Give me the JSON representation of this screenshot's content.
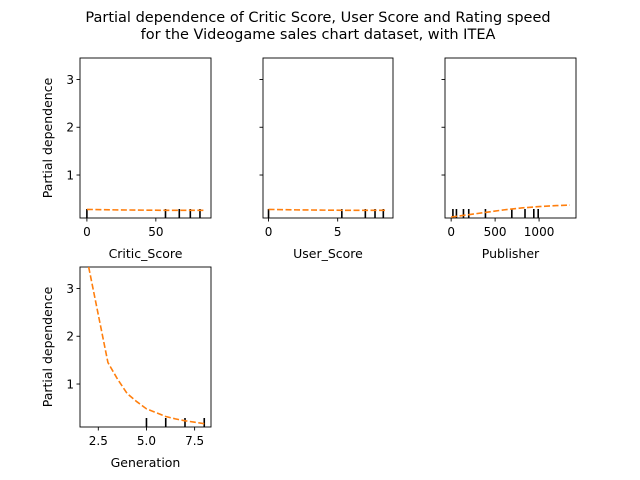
{
  "figure": {
    "title_lines": [
      "Partial dependence of Critic Score, User Score and Rating speed",
      "for the Videogame sales chart dataset, with ITEA"
    ]
  },
  "chart_data": [
    {
      "type": "line",
      "xlabel": "Critic_Score",
      "ylabel": "Partial dependence",
      "xlim": [
        -5,
        90
      ],
      "ylim": [
        0.1,
        3.45
      ],
      "xticks": [
        0,
        50
      ],
      "xtick_labels": [
        "0",
        "50"
      ],
      "yticks": [
        1,
        2,
        3
      ],
      "ytick_labels": [
        "1",
        "2",
        "3"
      ],
      "show_ytick_labels": true,
      "x": [
        0,
        20,
        40,
        60,
        85
      ],
      "y": [
        0.28,
        0.27,
        0.265,
        0.26,
        0.26
      ],
      "rug": [
        0,
        57,
        67,
        75,
        82
      ],
      "line_color": "#ff7f0e"
    },
    {
      "type": "line",
      "xlabel": "User_Score",
      "ylabel": "",
      "xlim": [
        -0.4,
        9.0
      ],
      "ylim": [
        0.1,
        3.45
      ],
      "xticks": [
        0,
        5
      ],
      "xtick_labels": [
        "0",
        "5"
      ],
      "yticks": [
        1,
        2,
        3
      ],
      "ytick_labels": [
        "",
        "",
        ""
      ],
      "show_ytick_labels": false,
      "x": [
        0,
        2,
        4,
        6,
        8.5
      ],
      "y": [
        0.28,
        0.27,
        0.265,
        0.26,
        0.26
      ],
      "rug": [
        0,
        5.3,
        7.0,
        7.7,
        8.3
      ],
      "line_color": "#ff7f0e"
    },
    {
      "type": "line",
      "xlabel": "Publisher",
      "ylabel": "",
      "xlim": [
        -70,
        1420
      ],
      "ylim": [
        0.1,
        3.45
      ],
      "xticks": [
        0,
        500,
        1000
      ],
      "xtick_labels": [
        "0",
        "500",
        "1000"
      ],
      "yticks": [
        1,
        2,
        3
      ],
      "ytick_labels": [
        "",
        "",
        ""
      ],
      "show_ytick_labels": false,
      "x": [
        0,
        200,
        400,
        600,
        800,
        1000,
        1200,
        1350
      ],
      "y": [
        0.12,
        0.17,
        0.22,
        0.27,
        0.31,
        0.34,
        0.36,
        0.37
      ],
      "rug": [
        20,
        60,
        140,
        200,
        390,
        690,
        840,
        940,
        990
      ],
      "line_color": "#ff7f0e"
    },
    {
      "type": "line",
      "xlabel": "Generation",
      "ylabel": "Partial dependence",
      "xlim": [
        1.55,
        8.35
      ],
      "ylim": [
        0.1,
        3.45
      ],
      "xticks": [
        2.5,
        5.0,
        7.5
      ],
      "xtick_labels": [
        "2.5",
        "5.0",
        "7.5"
      ],
      "yticks": [
        1,
        2,
        3
      ],
      "ytick_labels": [
        "1",
        "2",
        "3"
      ],
      "show_ytick_labels": true,
      "x": [
        2,
        2.5,
        3,
        3.5,
        4,
        4.5,
        5,
        5.5,
        6,
        6.5,
        7,
        7.5,
        8
      ],
      "y": [
        3.45,
        2.45,
        1.45,
        1.1,
        0.8,
        0.63,
        0.48,
        0.4,
        0.32,
        0.27,
        0.23,
        0.2,
        0.17
      ],
      "rug": [
        5,
        6,
        7,
        8
      ],
      "line_color": "#ff7f0e"
    }
  ]
}
